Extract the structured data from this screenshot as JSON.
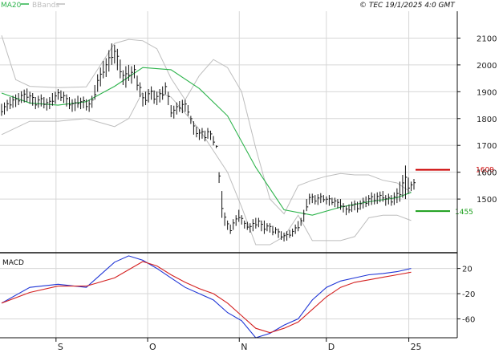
{
  "header": {
    "legend": [
      {
        "label": "MA20",
        "color": "#2bb34a"
      },
      {
        "label": "BBands",
        "color": "#bdbdbd"
      }
    ],
    "copyright": "© TEC 19/1/2025 4:0 GMT"
  },
  "price_panel": {
    "y_ticks": [
      "2100",
      "2000",
      "1900",
      "1800",
      "1700",
      "1600",
      "1500"
    ],
    "resistance": {
      "label": "1609",
      "value": 1609,
      "color": "#cc0000"
    },
    "support": {
      "label": "1455",
      "value": 1455,
      "color": "#1a9e1a"
    }
  },
  "macd_panel": {
    "title": "MACD",
    "y_ticks": [
      "20",
      "-20",
      "-60"
    ]
  },
  "x_labels": [
    "S",
    "O",
    "N",
    "D",
    "25"
  ],
  "chart_data": [
    {
      "type": "line",
      "panel": "price",
      "title": "",
      "ylim": [
        1300,
        2200
      ],
      "y_ticks": [
        2100,
        2000,
        1900,
        1800,
        1700,
        1600,
        1500
      ],
      "x_labels": [
        "S",
        "O",
        "N",
        "D",
        "25"
      ],
      "bars": [
        [
          1810,
          1855
        ],
        [
          1815,
          1860
        ],
        [
          1828,
          1870
        ],
        [
          1835,
          1880
        ],
        [
          1840,
          1885
        ],
        [
          1843,
          1890
        ],
        [
          1850,
          1895
        ],
        [
          1858,
          1902
        ],
        [
          1860,
          1908
        ],
        [
          1862,
          1912
        ],
        [
          1855,
          1900
        ],
        [
          1848,
          1895
        ],
        [
          1835,
          1880
        ],
        [
          1840,
          1885
        ],
        [
          1845,
          1890
        ],
        [
          1838,
          1880
        ],
        [
          1830,
          1875
        ],
        [
          1835,
          1880
        ],
        [
          1848,
          1895
        ],
        [
          1855,
          1900
        ],
        [
          1870,
          1910
        ],
        [
          1865,
          1905
        ],
        [
          1858,
          1900
        ],
        [
          1845,
          1890
        ],
        [
          1835,
          1880
        ],
        [
          1825,
          1872
        ],
        [
          1828,
          1875
        ],
        [
          1840,
          1885
        ],
        [
          1835,
          1878
        ],
        [
          1838,
          1882
        ],
        [
          1830,
          1872
        ],
        [
          1825,
          1870
        ],
        [
          1840,
          1885
        ],
        [
          1870,
          1925
        ],
        [
          1900,
          1965
        ],
        [
          1920,
          1990
        ],
        [
          1950,
          2015
        ],
        [
          1955,
          2025
        ],
        [
          1975,
          2055
        ],
        [
          2000,
          2080
        ],
        [
          2005,
          2075
        ],
        [
          1980,
          2060
        ],
        [
          1950,
          2020
        ],
        [
          1925,
          1980
        ],
        [
          1915,
          1995
        ],
        [
          1940,
          2000
        ],
        [
          1930,
          1995
        ],
        [
          1950,
          2000
        ],
        [
          1905,
          1960
        ],
        [
          1880,
          1935
        ],
        [
          1845,
          1895
        ],
        [
          1850,
          1900
        ],
        [
          1860,
          1910
        ],
        [
          1870,
          1920
        ],
        [
          1855,
          1905
        ],
        [
          1850,
          1900
        ],
        [
          1860,
          1910
        ],
        [
          1870,
          1920
        ],
        [
          1890,
          1935
        ],
        [
          1850,
          1900
        ],
        [
          1805,
          1850
        ],
        [
          1800,
          1848
        ],
        [
          1815,
          1860
        ],
        [
          1825,
          1865
        ],
        [
          1820,
          1870
        ],
        [
          1825,
          1870
        ],
        [
          1810,
          1850
        ],
        [
          1780,
          1810
        ],
        [
          1740,
          1790
        ],
        [
          1730,
          1770
        ],
        [
          1720,
          1760
        ],
        [
          1725,
          1765
        ],
        [
          1715,
          1755
        ],
        [
          1725,
          1765
        ],
        [
          1720,
          1755
        ],
        [
          1700,
          1735
        ],
        [
          1690,
          1700
        ],
        [
          1560,
          1600
        ],
        [
          1430,
          1530
        ],
        [
          1400,
          1450
        ],
        [
          1385,
          1420
        ],
        [
          1370,
          1405
        ],
        [
          1385,
          1425
        ],
        [
          1400,
          1440
        ],
        [
          1415,
          1460
        ],
        [
          1405,
          1440
        ],
        [
          1390,
          1420
        ],
        [
          1385,
          1415
        ],
        [
          1375,
          1410
        ],
        [
          1380,
          1425
        ],
        [
          1390,
          1430
        ],
        [
          1395,
          1430
        ],
        [
          1380,
          1420
        ],
        [
          1370,
          1420
        ],
        [
          1380,
          1410
        ],
        [
          1375,
          1410
        ],
        [
          1365,
          1400
        ],
        [
          1370,
          1395
        ],
        [
          1355,
          1390
        ],
        [
          1348,
          1380
        ],
        [
          1342,
          1375
        ],
        [
          1345,
          1380
        ],
        [
          1355,
          1385
        ],
        [
          1360,
          1390
        ],
        [
          1370,
          1405
        ],
        [
          1380,
          1418
        ],
        [
          1400,
          1430
        ],
        [
          1415,
          1460
        ],
        [
          1455,
          1500
        ],
        [
          1480,
          1520
        ],
        [
          1485,
          1520
        ],
        [
          1480,
          1515
        ],
        [
          1478,
          1518
        ],
        [
          1485,
          1522
        ],
        [
          1488,
          1515
        ],
        [
          1480,
          1510
        ],
        [
          1475,
          1515
        ],
        [
          1478,
          1505
        ],
        [
          1470,
          1505
        ],
        [
          1465,
          1500
        ],
        [
          1460,
          1500
        ],
        [
          1450,
          1485
        ],
        [
          1440,
          1475
        ],
        [
          1448,
          1480
        ],
        [
          1452,
          1490
        ],
        [
          1458,
          1495
        ],
        [
          1450,
          1490
        ],
        [
          1460,
          1495
        ],
        [
          1465,
          1505
        ],
        [
          1470,
          1510
        ],
        [
          1475,
          1515
        ],
        [
          1478,
          1525
        ],
        [
          1480,
          1520
        ],
        [
          1482,
          1525
        ],
        [
          1488,
          1528
        ],
        [
          1490,
          1530
        ],
        [
          1475,
          1515
        ],
        [
          1480,
          1520
        ],
        [
          1475,
          1515
        ],
        [
          1478,
          1525
        ],
        [
          1485,
          1540
        ],
        [
          1490,
          1565
        ],
        [
          1505,
          1590
        ],
        [
          1500,
          1625
        ],
        [
          1520,
          1580
        ],
        [
          1530,
          1565
        ],
        [
          1535,
          1575
        ]
      ],
      "series": [
        {
          "name": "MA20",
          "color": "#2bb34a",
          "x": [
            0,
            10,
            20,
            30,
            40,
            50,
            60,
            70,
            80,
            90,
            100,
            110,
            120,
            130,
            140,
            145
          ],
          "values": [
            1895,
            1858,
            1850,
            1863,
            1920,
            1990,
            1982,
            1912,
            1810,
            1618,
            1460,
            1440,
            1470,
            1490,
            1505,
            1525
          ]
        },
        {
          "name": "BBands",
          "color": "#bdbdbd",
          "x": [
            0,
            5,
            10,
            20,
            30,
            40,
            45,
            50,
            55,
            60,
            65,
            70,
            75,
            80,
            85,
            90,
            95,
            100,
            105,
            110,
            115,
            120,
            125,
            130,
            135,
            140,
            145
          ],
          "values": [
            2110,
            1945,
            1920,
            1915,
            1918,
            2080,
            2095,
            2090,
            2060,
            1950,
            1870,
            1960,
            2020,
            1990,
            1900,
            1690,
            1500,
            1445,
            1550,
            1570,
            1585,
            1595,
            1590,
            1590,
            1570,
            1560,
            1525
          ]
        },
        {
          "name": "",
          "color": "#bdbdbd",
          "x": [
            0,
            10,
            20,
            30,
            40,
            45,
            50,
            55,
            60,
            65,
            70,
            75,
            80,
            85,
            90,
            95,
            100,
            105,
            110,
            115,
            120,
            125,
            130,
            135,
            140,
            145
          ],
          "values": [
            1740,
            1790,
            1790,
            1800,
            1770,
            1800,
            1900,
            1900,
            1880,
            1820,
            1760,
            1680,
            1600,
            1470,
            1330,
            1330,
            1360,
            1440,
            1345,
            1345,
            1345,
            1360,
            1430,
            1440,
            1440,
            1420
          ]
        }
      ]
    },
    {
      "type": "line",
      "panel": "MACD",
      "title": "MACD",
      "ylim": [
        -90,
        45
      ],
      "y_ticks": [
        20,
        -20,
        -60
      ],
      "series": [
        {
          "name": "",
          "color": "#1f35d6",
          "x": [
            0,
            10,
            20,
            30,
            40,
            45,
            50,
            55,
            60,
            65,
            70,
            75,
            80,
            85,
            90,
            95,
            100,
            105,
            110,
            115,
            120,
            125,
            130,
            135,
            140,
            145
          ],
          "values": [
            -35,
            -10,
            -5,
            -10,
            30,
            40,
            33,
            20,
            5,
            -10,
            -20,
            -30,
            -50,
            -63,
            -90,
            -83,
            -70,
            -60,
            -30,
            -10,
            0,
            5,
            10,
            12,
            15,
            20
          ]
        },
        {
          "name": "",
          "color": "#d42020",
          "x": [
            0,
            10,
            20,
            30,
            40,
            50,
            55,
            60,
            65,
            70,
            75,
            80,
            85,
            90,
            95,
            100,
            105,
            110,
            115,
            120,
            125,
            130,
            135,
            140,
            145
          ],
          "values": [
            -35,
            -18,
            -8,
            -8,
            5,
            31,
            24,
            10,
            -2,
            -12,
            -20,
            -35,
            -55,
            -75,
            -82,
            -75,
            -65,
            -45,
            -25,
            -10,
            -2,
            2,
            6,
            10,
            14
          ]
        }
      ]
    }
  ]
}
